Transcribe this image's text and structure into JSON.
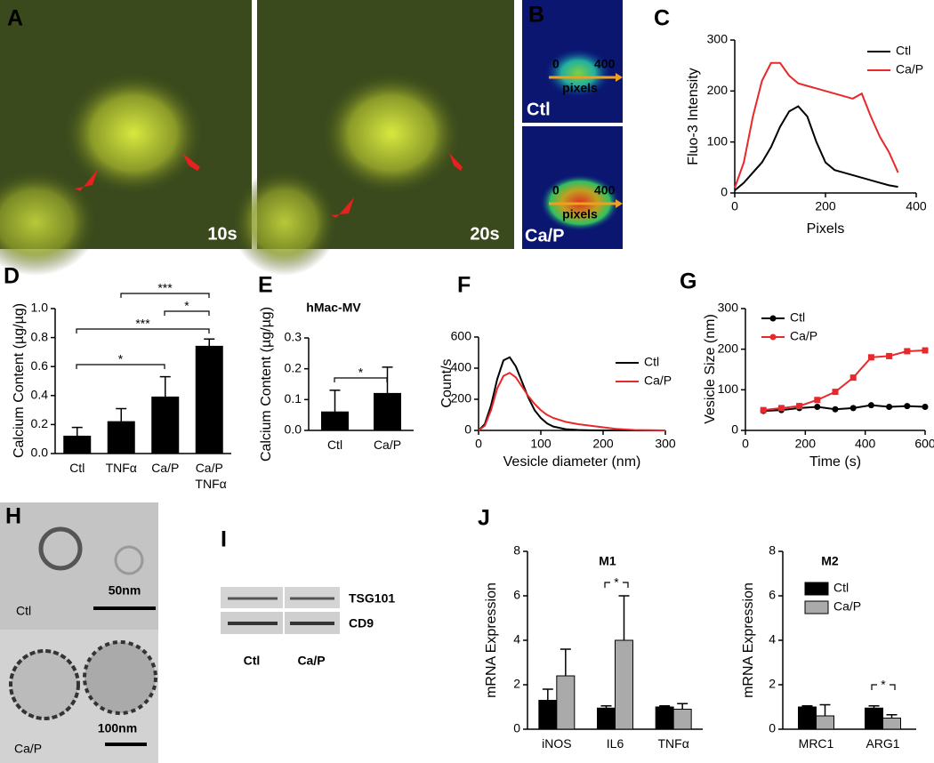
{
  "panel_labels": [
    "A",
    "B",
    "C",
    "D",
    "E",
    "F",
    "G",
    "H",
    "I",
    "J"
  ],
  "panel_a": {
    "times": [
      "10s",
      "20s"
    ]
  },
  "panel_b": [
    {
      "start": "0",
      "end": "400",
      "axis": "pixels",
      "group": "Ctl"
    },
    {
      "start": "0",
      "end": "400",
      "axis": "pixels",
      "group": "Ca/P"
    }
  ],
  "panel_h": [
    {
      "group": "Ctl",
      "scale": "50nm"
    },
    {
      "group": "Ca/P",
      "scale": "100nm"
    }
  ],
  "panel_i": {
    "bands": [
      "TSG101",
      "CD9"
    ],
    "lanes": [
      "Ctl",
      "Ca/P"
    ]
  },
  "chart_data": [
    {
      "type": "line",
      "x_label": "Pixels",
      "y_label": "Fluo-3 Intensity",
      "x": [
        0,
        20,
        40,
        60,
        80,
        100,
        120,
        140,
        160,
        180,
        200,
        220,
        240,
        260,
        280,
        300,
        320,
        340,
        360
      ],
      "series": [
        {
          "name": "Ctl",
          "color": "#000000",
          "values": [
            5,
            20,
            40,
            60,
            90,
            130,
            160,
            170,
            150,
            100,
            60,
            45,
            40,
            35,
            30,
            25,
            20,
            15,
            12
          ]
        },
        {
          "name": "Ca/P",
          "color": "#e8282a",
          "values": [
            10,
            60,
            150,
            220,
            255,
            255,
            230,
            215,
            210,
            205,
            200,
            195,
            190,
            185,
            195,
            150,
            110,
            80,
            40
          ]
        }
      ],
      "xlim": [
        0,
        400
      ],
      "xticks": [
        0,
        200,
        400
      ],
      "ylim": [
        0,
        300
      ],
      "yticks": [
        0,
        100,
        200,
        300
      ],
      "legend": true,
      "markers": false
    },
    {
      "type": "bar",
      "y_label": "Calcium Content (µg/µg)",
      "categories": [
        "Ctl",
        "TNFα",
        "Ca/P",
        "Ca/P TNFα"
      ],
      "values": [
        0.12,
        0.22,
        0.39,
        0.74
      ],
      "errors": [
        0.06,
        0.09,
        0.14,
        0.05
      ],
      "color": "#000000",
      "ylim": [
        0,
        1.0
      ],
      "yticks": [
        {
          "value": 0,
          "label": "0.0"
        },
        0.2,
        0.4,
        0.6,
        0.8,
        {
          "value": 1.0,
          "label": "1.0"
        }
      ],
      "annotations": [
        "***",
        "*",
        "***",
        "*"
      ],
      "legend": false
    },
    {
      "type": "bar",
      "title": "hMac-MV",
      "y_label": "Calcium Content (µg/µg)",
      "categories": [
        "Ctl",
        "Ca/P"
      ],
      "values": [
        0.06,
        0.12
      ],
      "errors": [
        0.07,
        0.085
      ],
      "color": "#000000",
      "ylim": [
        0,
        0.3
      ],
      "yticks": [
        {
          "value": 0,
          "label": "0.0"
        },
        0.1,
        0.2,
        0.3
      ],
      "annotations": [
        "*"
      ],
      "legend": false
    },
    {
      "type": "line",
      "x_label": "Vesicle diameter (nm)",
      "y_label": "Count/s",
      "x": [
        0,
        10,
        20,
        30,
        40,
        50,
        60,
        70,
        80,
        90,
        100,
        110,
        120,
        140,
        160,
        180,
        200,
        220,
        250,
        300
      ],
      "series": [
        {
          "name": "Ctl",
          "color": "#000000",
          "values": [
            0,
            40,
            160,
            330,
            450,
            470,
            410,
            310,
            210,
            130,
            80,
            45,
            25,
            8,
            3,
            1,
            0,
            0,
            0,
            0
          ]
        },
        {
          "name": "Ca/P",
          "color": "#e8282a",
          "values": [
            0,
            30,
            130,
            270,
            350,
            370,
            340,
            280,
            220,
            170,
            130,
            100,
            80,
            55,
            40,
            30,
            20,
            10,
            3,
            0
          ]
        }
      ],
      "xlim": [
        0,
        300
      ],
      "xticks": [
        0,
        100,
        200,
        300
      ],
      "ylim": [
        0,
        600
      ],
      "yticks": [
        0,
        200,
        400,
        600
      ],
      "legend": true,
      "markers": false
    },
    {
      "type": "line",
      "x_label": "Time (s)",
      "y_label": "Vesicle Size (nm)",
      "x": [
        60,
        120,
        180,
        240,
        300,
        360,
        420,
        480,
        540,
        600
      ],
      "series": [
        {
          "name": "Ctl",
          "color": "#000000",
          "values": [
            48,
            50,
            55,
            58,
            52,
            55,
            62,
            58,
            60,
            58
          ]
        },
        {
          "name": "Ca/P",
          "color": "#e8282a",
          "values": [
            50,
            55,
            60,
            75,
            95,
            130,
            180,
            183,
            195,
            197
          ]
        }
      ],
      "xlim": [
        0,
        600
      ],
      "xticks": [
        0,
        200,
        400,
        600
      ],
      "ylim": [
        0,
        300
      ],
      "yticks": [
        0,
        100,
        200,
        300
      ],
      "legend": true,
      "markers": true
    },
    {
      "type": "bar",
      "title": "M1",
      "y_label": "mRNA Expression",
      "categories": [
        "iNOS",
        "IL6",
        "TNFα"
      ],
      "series": [
        {
          "color": "#000000",
          "values": [
            1.3,
            0.95,
            1.0
          ],
          "errors": [
            0.5,
            0.1,
            0.05
          ]
        },
        {
          "color": "#aaaaaa",
          "values": [
            2.4,
            4.0,
            0.9
          ],
          "errors": [
            1.2,
            2.0,
            0.25
          ]
        }
      ],
      "ylim": [
        0,
        8
      ],
      "yticks": [
        0,
        2,
        4,
        6,
        8
      ],
      "annotations": [
        "*"
      ],
      "legend": false
    },
    {
      "type": "bar",
      "title": "M2",
      "y_label": "mRNA Expression",
      "categories": [
        "MRC1",
        "ARG1"
      ],
      "series": [
        {
          "name": "Ctl",
          "color": "#000000",
          "values": [
            1.0,
            0.95
          ],
          "errors": [
            0.05,
            0.1
          ]
        },
        {
          "name": "Ca/P",
          "color": "#aaaaaa",
          "values": [
            0.6,
            0.5
          ],
          "errors": [
            0.5,
            0.15
          ]
        }
      ],
      "ylim": [
        0,
        8
      ],
      "yticks": [
        0,
        2,
        4,
        6,
        8
      ],
      "annotations": [
        "*"
      ],
      "legend": true
    }
  ]
}
